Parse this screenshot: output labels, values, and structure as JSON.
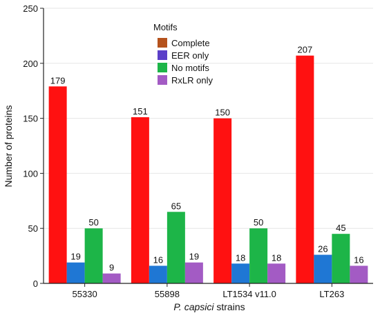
{
  "chart_data": {
    "type": "bar",
    "xlabel_italic": "P. capsici",
    "xlabel_rest": " strains",
    "ylabel": "Number of proteins",
    "ylim": [
      0,
      250
    ],
    "yticks": [
      0,
      50,
      100,
      150,
      200,
      250
    ],
    "categories": [
      "55330",
      "55898",
      "LT1534 v11.0",
      "LT263"
    ],
    "legend": {
      "title": "Motifs",
      "placement": "top-center"
    },
    "series": [
      {
        "name": "Complete",
        "color": "#ff1111",
        "legend_color": "#b5521c",
        "values": [
          179,
          151,
          150,
          207
        ]
      },
      {
        "name": "EER only",
        "color": "#1f77d4",
        "legend_color": "#5b3fc8",
        "values": [
          19,
          16,
          18,
          26
        ]
      },
      {
        "name": "No motifs",
        "color": "#1db548",
        "legend_color": "#1db548",
        "values": [
          50,
          65,
          50,
          45
        ]
      },
      {
        "name": "RxLR only",
        "color": "#a35bc4",
        "legend_color": "#a35bc4",
        "values": [
          9,
          19,
          18,
          16
        ]
      }
    ]
  }
}
